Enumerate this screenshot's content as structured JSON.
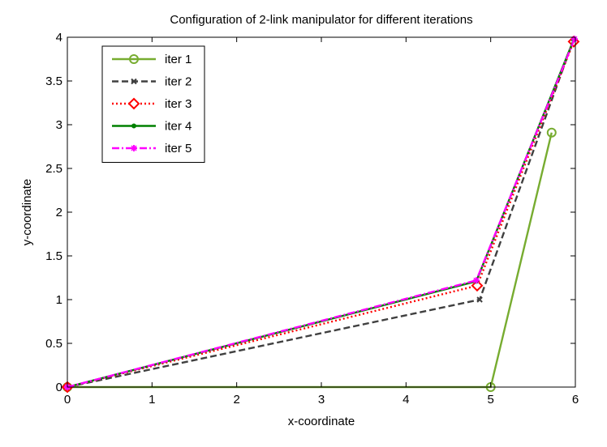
{
  "chart_data": {
    "type": "line",
    "title": "Configuration of 2-link manipulator for different iterations",
    "xlabel": "x-coordinate",
    "ylabel": "y-coordinate",
    "xlim": [
      0,
      6
    ],
    "ylim": [
      0,
      4
    ],
    "xticks": [
      "0",
      "1",
      "2",
      "3",
      "4",
      "5",
      "6"
    ],
    "yticks": [
      "0",
      "0.5",
      "1",
      "1.5",
      "2",
      "2.5",
      "3",
      "3.5",
      "4"
    ],
    "legend_position": "top-left",
    "series": [
      {
        "name": "iter 1",
        "color": "#77ac30",
        "dash": "solid",
        "marker": "circle",
        "points": [
          [
            0,
            0
          ],
          [
            5.0,
            0
          ],
          [
            5.72,
            2.91
          ]
        ]
      },
      {
        "name": "iter 2",
        "color": "#404040",
        "dash": "dashed",
        "marker": "x",
        "points": [
          [
            0,
            0
          ],
          [
            4.87,
            1.0
          ],
          [
            5.97,
            3.95
          ]
        ]
      },
      {
        "name": "iter 3",
        "color": "#ff0000",
        "dash": "dotted",
        "marker": "diamond",
        "points": [
          [
            0,
            0
          ],
          [
            4.84,
            1.16
          ],
          [
            5.98,
            3.95
          ]
        ]
      },
      {
        "name": "iter 4",
        "color": "#008000",
        "dash": "solid",
        "marker": "dot",
        "points": [
          [
            0,
            0
          ],
          [
            4.83,
            1.21
          ],
          [
            5.98,
            3.97
          ]
        ]
      },
      {
        "name": "iter 5",
        "color": "#ff00ff",
        "dash": "dashdot",
        "marker": "star",
        "points": [
          [
            0,
            0
          ],
          [
            4.83,
            1.22
          ],
          [
            5.99,
            3.98
          ]
        ]
      }
    ]
  }
}
